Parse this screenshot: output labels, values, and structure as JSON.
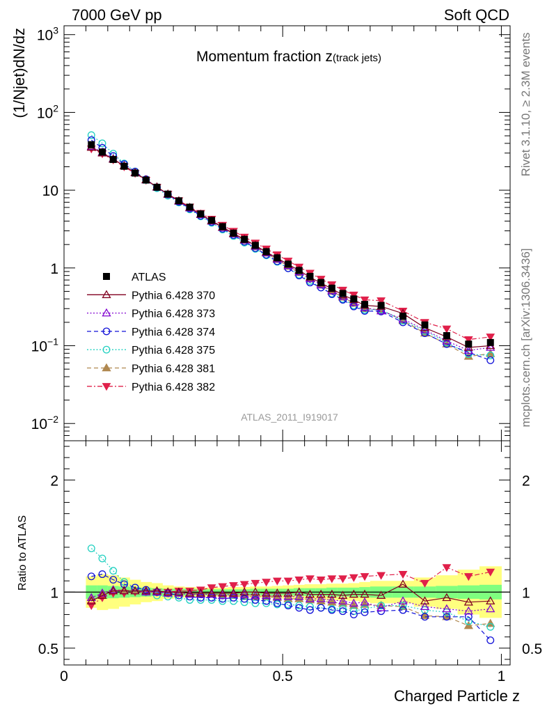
{
  "header": {
    "left": "7000 GeV pp",
    "right": "Soft QCD"
  },
  "side": {
    "rivet": "Rivet 3.1.10, ≥ 2.3M events",
    "mcplots": "mcplots.cern.ch [arXiv:1306.3436]"
  },
  "chart_data": [
    {
      "type": "scatter",
      "panel": "main",
      "title": "Momentum fraction z",
      "title_sub": "(track jets)",
      "ylabel": "(1/Njet)dN/dz",
      "yscale": "log",
      "ylim": [
        0.006,
        1300
      ],
      "xlim": [
        0,
        1.02
      ],
      "y_ticks": [
        "10^-2",
        "10^-1",
        "1",
        "10",
        "10^2",
        "10^3"
      ],
      "watermark": "ATLAS_2011_I919017",
      "legend_position": "lower-left",
      "x": [
        0.0625,
        0.0875,
        0.1125,
        0.1375,
        0.1625,
        0.1875,
        0.2125,
        0.2375,
        0.2625,
        0.2875,
        0.3125,
        0.3375,
        0.3625,
        0.3875,
        0.4125,
        0.4375,
        0.4625,
        0.4875,
        0.5125,
        0.5375,
        0.5625,
        0.5875,
        0.6125,
        0.6375,
        0.6625,
        0.6875,
        0.725,
        0.775,
        0.825,
        0.875,
        0.925,
        0.975
      ],
      "series": [
        {
          "name": "ATLAS",
          "color": "#000000",
          "marker": "square-filled",
          "line": "none",
          "values": [
            38.5,
            31.0,
            24.8,
            20.3,
            16.6,
            13.5,
            10.9,
            8.9,
            7.3,
            6.05,
            4.95,
            4.1,
            3.4,
            2.8,
            2.33,
            1.95,
            1.62,
            1.35,
            1.12,
            0.93,
            0.78,
            0.65,
            0.55,
            0.47,
            0.4,
            0.34,
            0.33,
            0.24,
            0.185,
            0.135,
            0.105,
            0.11
          ]
        },
        {
          "name": "Pythia 6.428 370",
          "color": "#800020",
          "marker": "triangle-up-open",
          "line": "solid",
          "values": [
            35.5,
            30.0,
            25.0,
            20.5,
            16.8,
            13.6,
            11.0,
            8.9,
            7.3,
            6.0,
            4.9,
            4.05,
            3.35,
            2.78,
            2.33,
            1.95,
            1.6,
            1.34,
            1.11,
            0.93,
            0.76,
            0.64,
            0.54,
            0.45,
            0.39,
            0.33,
            0.32,
            0.26,
            0.17,
            0.13,
            0.095,
            0.1
          ]
        },
        {
          "name": "Pythia 6.428 373",
          "color": "#8000d0",
          "marker": "triangle-up-open",
          "line": "dotted",
          "values": [
            36.5,
            30.6,
            25.3,
            20.6,
            16.7,
            13.5,
            10.9,
            8.8,
            7.2,
            5.9,
            4.85,
            4.0,
            3.3,
            2.75,
            2.28,
            1.9,
            1.57,
            1.3,
            1.07,
            0.89,
            0.73,
            0.61,
            0.51,
            0.43,
            0.36,
            0.31,
            0.28,
            0.22,
            0.16,
            0.115,
            0.087,
            0.095
          ]
        },
        {
          "name": "Pythia 6.428 374",
          "color": "#1010d8",
          "marker": "circle-open",
          "line": "dashed",
          "values": [
            44.0,
            35.0,
            27.5,
            21.6,
            17.3,
            13.8,
            10.9,
            8.8,
            7.1,
            5.8,
            4.7,
            3.9,
            3.2,
            2.65,
            2.18,
            1.8,
            1.48,
            1.22,
            0.99,
            0.8,
            0.65,
            0.56,
            0.46,
            0.39,
            0.32,
            0.28,
            0.275,
            0.2,
            0.145,
            0.105,
            0.082,
            0.065
          ]
        },
        {
          "name": "Pythia 6.428 375",
          "color": "#20d0c0",
          "marker": "circle-open",
          "line": "dotted",
          "values": [
            51.0,
            40.0,
            29.5,
            22.0,
            17.4,
            13.5,
            10.6,
            8.5,
            6.95,
            5.65,
            4.6,
            3.8,
            3.12,
            2.58,
            2.12,
            1.76,
            1.45,
            1.2,
            0.99,
            0.82,
            0.68,
            0.56,
            0.47,
            0.4,
            0.33,
            0.29,
            0.29,
            0.21,
            0.155,
            0.11,
            0.078,
            0.075
          ]
        },
        {
          "name": "Pythia 6.428 381",
          "color": "#b08850",
          "marker": "triangle-up-filled",
          "line": "dashed",
          "values": [
            36.5,
            30.5,
            25.2,
            20.6,
            16.8,
            13.6,
            11.0,
            8.9,
            7.25,
            5.95,
            4.85,
            4.0,
            3.3,
            2.73,
            2.25,
            1.87,
            1.55,
            1.28,
            1.05,
            0.87,
            0.72,
            0.6,
            0.5,
            0.42,
            0.35,
            0.3,
            0.29,
            0.21,
            0.145,
            0.105,
            0.073,
            0.079
          ]
        },
        {
          "name": "Pythia 6.428 382",
          "color": "#e0204a",
          "marker": "triangle-down-filled",
          "line": "dashdot",
          "values": [
            34.0,
            29.4,
            24.5,
            20.0,
            16.5,
            13.4,
            10.9,
            8.9,
            7.35,
            6.1,
            5.05,
            4.25,
            3.55,
            2.97,
            2.5,
            2.1,
            1.76,
            1.48,
            1.23,
            1.03,
            0.86,
            0.72,
            0.61,
            0.52,
            0.45,
            0.39,
            0.38,
            0.28,
            0.2,
            0.165,
            0.12,
            0.13
          ]
        }
      ]
    },
    {
      "type": "scatter",
      "panel": "ratio",
      "ylabel": "Ratio to ATLAS",
      "xlabel": "Charged Particle z",
      "ylim": [
        0.35,
        2.35
      ],
      "xlim": [
        0,
        1.02
      ],
      "y_ticks": [
        "0.5",
        "1",
        "2"
      ],
      "x_ticks": [
        "0",
        "0.5",
        "1"
      ],
      "x": [
        0.0625,
        0.0875,
        0.1125,
        0.1375,
        0.1625,
        0.1875,
        0.2125,
        0.2375,
        0.2625,
        0.2875,
        0.3125,
        0.3375,
        0.3625,
        0.3875,
        0.4125,
        0.4375,
        0.4625,
        0.4875,
        0.5125,
        0.5375,
        0.5625,
        0.5875,
        0.6125,
        0.6375,
        0.6625,
        0.6875,
        0.725,
        0.775,
        0.825,
        0.875,
        0.925,
        0.975
      ],
      "band_green_halfwidth": [
        0.06,
        0.06,
        0.055,
        0.05,
        0.045,
        0.04,
        0.035,
        0.03,
        0.03,
        0.03,
        0.025,
        0.025,
        0.025,
        0.025,
        0.025,
        0.03,
        0.03,
        0.03,
        0.03,
        0.035,
        0.035,
        0.035,
        0.04,
        0.04,
        0.04,
        0.045,
        0.05,
        0.05,
        0.05,
        0.055,
        0.06,
        0.065
      ],
      "band_yellow_halfwidth": [
        0.14,
        0.16,
        0.15,
        0.13,
        0.11,
        0.09,
        0.08,
        0.06,
        0.05,
        0.045,
        0.04,
        0.04,
        0.04,
        0.045,
        0.045,
        0.05,
        0.05,
        0.055,
        0.06,
        0.065,
        0.07,
        0.07,
        0.075,
        0.075,
        0.08,
        0.09,
        0.1,
        0.1,
        0.13,
        0.15,
        0.2,
        0.23
      ],
      "series": [
        {
          "name": "Pythia 6.428 370",
          "color": "#800020",
          "marker": "triangle-up-open",
          "line": "solid",
          "values": [
            0.92,
            0.97,
            1.01,
            1.01,
            1.01,
            1.01,
            1.01,
            1.0,
            1.0,
            0.99,
            0.99,
            0.99,
            0.99,
            0.99,
            1.0,
            1.0,
            0.99,
            0.99,
            0.99,
            1.0,
            0.98,
            0.98,
            0.98,
            0.97,
            0.98,
            0.98,
            0.97,
            1.07,
            0.92,
            0.95,
            0.91,
            0.92
          ]
        },
        {
          "name": "Pythia 6.428 373",
          "color": "#8000d0",
          "marker": "triangle-up-open",
          "line": "dotted",
          "values": [
            0.95,
            0.99,
            1.02,
            1.01,
            1.01,
            1.0,
            1.0,
            0.99,
            0.99,
            0.98,
            0.98,
            0.98,
            0.97,
            0.98,
            0.98,
            0.97,
            0.97,
            0.96,
            0.96,
            0.96,
            0.94,
            0.94,
            0.93,
            0.92,
            0.9,
            0.91,
            0.86,
            0.92,
            0.87,
            0.85,
            0.83,
            0.85
          ]
        },
        {
          "name": "Pythia 6.428 374",
          "color": "#1010d8",
          "marker": "circle-open",
          "line": "dashed",
          "values": [
            1.14,
            1.16,
            1.11,
            1.07,
            1.04,
            1.02,
            1.0,
            0.99,
            0.97,
            0.96,
            0.95,
            0.95,
            0.94,
            0.95,
            0.94,
            0.93,
            0.92,
            0.9,
            0.88,
            0.86,
            0.84,
            0.86,
            0.84,
            0.83,
            0.8,
            0.82,
            0.83,
            0.84,
            0.78,
            0.78,
            0.78,
            0.57
          ]
        },
        {
          "name": "Pythia 6.428 375",
          "color": "#20d0c0",
          "marker": "circle-open",
          "line": "dotted",
          "values": [
            1.39,
            1.3,
            1.19,
            1.09,
            1.04,
            1.0,
            0.97,
            0.96,
            0.95,
            0.93,
            0.93,
            0.93,
            0.92,
            0.92,
            0.91,
            0.9,
            0.9,
            0.89,
            0.89,
            0.88,
            0.87,
            0.86,
            0.85,
            0.85,
            0.83,
            0.85,
            0.88,
            0.88,
            0.84,
            0.82,
            0.74,
            0.69
          ]
        },
        {
          "name": "Pythia 6.428 381",
          "color": "#b08850",
          "marker": "triangle-up-filled",
          "line": "dashed",
          "values": [
            0.95,
            0.99,
            1.02,
            1.02,
            1.01,
            1.01,
            1.01,
            1.0,
            0.99,
            0.98,
            0.98,
            0.98,
            0.97,
            0.97,
            0.96,
            0.96,
            0.96,
            0.95,
            0.94,
            0.94,
            0.93,
            0.92,
            0.91,
            0.9,
            0.88,
            0.89,
            0.88,
            0.87,
            0.79,
            0.78,
            0.7,
            0.72
          ]
        },
        {
          "name": "Pythia 6.428 382",
          "color": "#e0204a",
          "marker": "triangle-down-filled",
          "line": "dashdot",
          "values": [
            0.88,
            0.95,
            0.99,
            0.99,
            1.0,
            1.0,
            1.0,
            1.0,
            1.01,
            1.01,
            1.02,
            1.04,
            1.05,
            1.06,
            1.07,
            1.08,
            1.09,
            1.1,
            1.1,
            1.11,
            1.12,
            1.11,
            1.12,
            1.12,
            1.13,
            1.14,
            1.15,
            1.16,
            1.08,
            1.22,
            1.14,
            1.18
          ]
        }
      ]
    }
  ]
}
